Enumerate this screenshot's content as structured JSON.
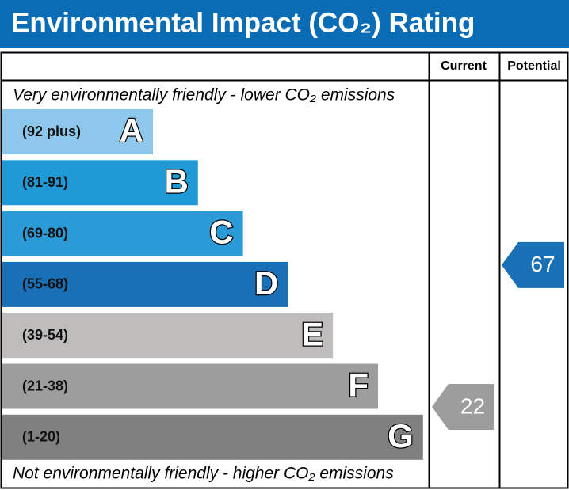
{
  "title": "Environmental Impact (CO₂) Rating",
  "header": {
    "current": "Current",
    "potential": "Potential"
  },
  "top_note": "Very environmentally friendly - lower CO₂ emissions",
  "bottom_note": "Not environmentally friendly - higher CO₂ emissions",
  "bands": [
    {
      "range": "(92 plus)",
      "letter": "A",
      "color": "#8dc8ec"
    },
    {
      "range": "(81-91)",
      "letter": "B",
      "color": "#1f9ad6"
    },
    {
      "range": "(69-80)",
      "letter": "C",
      "color": "#2b9bd7"
    },
    {
      "range": "(55-68)",
      "letter": "D",
      "color": "#1a70b6"
    },
    {
      "range": "(39-54)",
      "letter": "E",
      "color": "#bebdbc"
    },
    {
      "range": "(21-38)",
      "letter": "F",
      "color": "#9e9d9d"
    },
    {
      "range": "(1-20)",
      "letter": "G",
      "color": "#818080"
    }
  ],
  "current": {
    "value": 22,
    "color": "#9e9d9d"
  },
  "potential": {
    "value": 67,
    "color": "#1a70b6"
  }
}
